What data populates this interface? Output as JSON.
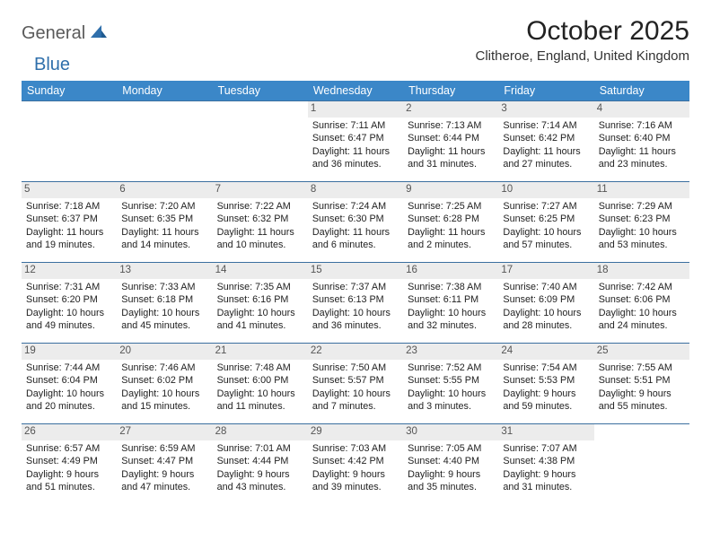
{
  "brand": {
    "part1": "General",
    "part2": "Blue"
  },
  "title": "October 2025",
  "location": "Clitheroe, England, United Kingdom",
  "colors": {
    "header_bg": "#3b87c8",
    "header_text": "#ffffff",
    "row_border": "#3b6f9f",
    "daynum_bg": "#ececec",
    "logo_gray": "#5a5a5a",
    "logo_blue": "#2f6fab"
  },
  "day_headers": [
    "Sunday",
    "Monday",
    "Tuesday",
    "Wednesday",
    "Thursday",
    "Friday",
    "Saturday"
  ],
  "weeks": [
    [
      null,
      null,
      null,
      {
        "n": "1",
        "sr": "7:11 AM",
        "ss": "6:47 PM",
        "dl": "11 hours and 36 minutes."
      },
      {
        "n": "2",
        "sr": "7:13 AM",
        "ss": "6:44 PM",
        "dl": "11 hours and 31 minutes."
      },
      {
        "n": "3",
        "sr": "7:14 AM",
        "ss": "6:42 PM",
        "dl": "11 hours and 27 minutes."
      },
      {
        "n": "4",
        "sr": "7:16 AM",
        "ss": "6:40 PM",
        "dl": "11 hours and 23 minutes."
      }
    ],
    [
      {
        "n": "5",
        "sr": "7:18 AM",
        "ss": "6:37 PM",
        "dl": "11 hours and 19 minutes."
      },
      {
        "n": "6",
        "sr": "7:20 AM",
        "ss": "6:35 PM",
        "dl": "11 hours and 14 minutes."
      },
      {
        "n": "7",
        "sr": "7:22 AM",
        "ss": "6:32 PM",
        "dl": "11 hours and 10 minutes."
      },
      {
        "n": "8",
        "sr": "7:24 AM",
        "ss": "6:30 PM",
        "dl": "11 hours and 6 minutes."
      },
      {
        "n": "9",
        "sr": "7:25 AM",
        "ss": "6:28 PM",
        "dl": "11 hours and 2 minutes."
      },
      {
        "n": "10",
        "sr": "7:27 AM",
        "ss": "6:25 PM",
        "dl": "10 hours and 57 minutes."
      },
      {
        "n": "11",
        "sr": "7:29 AM",
        "ss": "6:23 PM",
        "dl": "10 hours and 53 minutes."
      }
    ],
    [
      {
        "n": "12",
        "sr": "7:31 AM",
        "ss": "6:20 PM",
        "dl": "10 hours and 49 minutes."
      },
      {
        "n": "13",
        "sr": "7:33 AM",
        "ss": "6:18 PM",
        "dl": "10 hours and 45 minutes."
      },
      {
        "n": "14",
        "sr": "7:35 AM",
        "ss": "6:16 PM",
        "dl": "10 hours and 41 minutes."
      },
      {
        "n": "15",
        "sr": "7:37 AM",
        "ss": "6:13 PM",
        "dl": "10 hours and 36 minutes."
      },
      {
        "n": "16",
        "sr": "7:38 AM",
        "ss": "6:11 PM",
        "dl": "10 hours and 32 minutes."
      },
      {
        "n": "17",
        "sr": "7:40 AM",
        "ss": "6:09 PM",
        "dl": "10 hours and 28 minutes."
      },
      {
        "n": "18",
        "sr": "7:42 AM",
        "ss": "6:06 PM",
        "dl": "10 hours and 24 minutes."
      }
    ],
    [
      {
        "n": "19",
        "sr": "7:44 AM",
        "ss": "6:04 PM",
        "dl": "10 hours and 20 minutes."
      },
      {
        "n": "20",
        "sr": "7:46 AM",
        "ss": "6:02 PM",
        "dl": "10 hours and 15 minutes."
      },
      {
        "n": "21",
        "sr": "7:48 AM",
        "ss": "6:00 PM",
        "dl": "10 hours and 11 minutes."
      },
      {
        "n": "22",
        "sr": "7:50 AM",
        "ss": "5:57 PM",
        "dl": "10 hours and 7 minutes."
      },
      {
        "n": "23",
        "sr": "7:52 AM",
        "ss": "5:55 PM",
        "dl": "10 hours and 3 minutes."
      },
      {
        "n": "24",
        "sr": "7:54 AM",
        "ss": "5:53 PM",
        "dl": "9 hours and 59 minutes."
      },
      {
        "n": "25",
        "sr": "7:55 AM",
        "ss": "5:51 PM",
        "dl": "9 hours and 55 minutes."
      }
    ],
    [
      {
        "n": "26",
        "sr": "6:57 AM",
        "ss": "4:49 PM",
        "dl": "9 hours and 51 minutes."
      },
      {
        "n": "27",
        "sr": "6:59 AM",
        "ss": "4:47 PM",
        "dl": "9 hours and 47 minutes."
      },
      {
        "n": "28",
        "sr": "7:01 AM",
        "ss": "4:44 PM",
        "dl": "9 hours and 43 minutes."
      },
      {
        "n": "29",
        "sr": "7:03 AM",
        "ss": "4:42 PM",
        "dl": "9 hours and 39 minutes."
      },
      {
        "n": "30",
        "sr": "7:05 AM",
        "ss": "4:40 PM",
        "dl": "9 hours and 35 minutes."
      },
      {
        "n": "31",
        "sr": "7:07 AM",
        "ss": "4:38 PM",
        "dl": "9 hours and 31 minutes."
      },
      null
    ]
  ],
  "labels": {
    "sunrise": "Sunrise:",
    "sunset": "Sunset:",
    "daylight": "Daylight:"
  }
}
